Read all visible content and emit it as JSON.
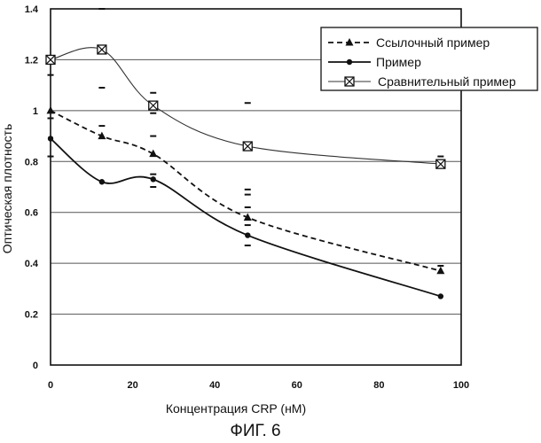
{
  "figure_caption": "ФИГ. 6",
  "chart_data": {
    "type": "line",
    "title": "",
    "xlabel": "Концентрация CRP (нМ)",
    "ylabel": "Оптическая плотность",
    "xlim": [
      0,
      100
    ],
    "ylim": [
      0,
      1.4
    ],
    "x_ticks": [
      0,
      20,
      40,
      60,
      80,
      100
    ],
    "y_ticks": [
      0,
      0.2,
      0.4,
      0.6,
      0.8,
      1,
      1.2,
      1.4
    ],
    "x_tick_labels": [
      "0",
      "20",
      "40",
      "60",
      "80",
      "100"
    ],
    "y_tick_labels": [
      "0",
      "0.2",
      "0.4",
      "0.6",
      "0.8",
      "1",
      "1.2",
      "1.4"
    ],
    "grid": "horizontal",
    "legend_position": "top-right",
    "series": [
      {
        "name": "Ссылочный пример",
        "marker": "triangle",
        "line_style": "dashed",
        "x": [
          0,
          12.5,
          25,
          48,
          95
        ],
        "y": [
          1.0,
          0.9,
          0.83,
          0.58,
          0.37
        ]
      },
      {
        "name": "Пример",
        "marker": "circle",
        "line_style": "solid",
        "x": [
          0,
          12.5,
          25,
          48,
          95
        ],
        "y": [
          0.89,
          0.72,
          0.73,
          0.51,
          0.27
        ]
      },
      {
        "name": "Сравнительный пример",
        "marker": "boxed-x",
        "line_style": "thin-solid",
        "x": [
          0,
          12.5,
          25,
          48,
          95
        ],
        "y": [
          1.2,
          1.24,
          1.02,
          0.86,
          0.79
        ]
      }
    ],
    "error_marks": [
      {
        "x": 0,
        "y": 1.14
      },
      {
        "x": 0,
        "y": 0.97
      },
      {
        "x": 0,
        "y": 0.82
      },
      {
        "x": 12.5,
        "y": 1.4
      },
      {
        "x": 12.5,
        "y": 1.09
      },
      {
        "x": 12.5,
        "y": 0.94
      },
      {
        "x": 25,
        "y": 1.07
      },
      {
        "x": 25,
        "y": 0.99
      },
      {
        "x": 25,
        "y": 0.9
      },
      {
        "x": 25,
        "y": 0.75
      },
      {
        "x": 25,
        "y": 0.7
      },
      {
        "x": 48,
        "y": 1.03
      },
      {
        "x": 48,
        "y": 0.69
      },
      {
        "x": 48,
        "y": 0.67
      },
      {
        "x": 48,
        "y": 0.62
      },
      {
        "x": 48,
        "y": 0.55
      },
      {
        "x": 48,
        "y": 0.47
      },
      {
        "x": 95,
        "y": 0.82
      },
      {
        "x": 95,
        "y": 0.39
      }
    ]
  }
}
